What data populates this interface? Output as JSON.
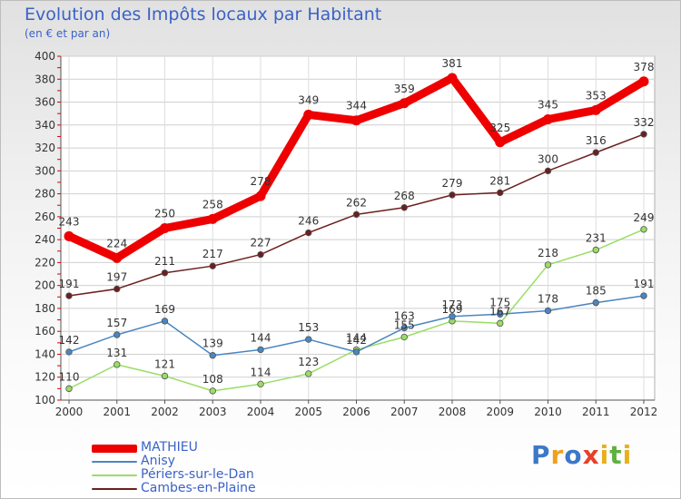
{
  "title": "Evolution des Impôts locaux par Habitant",
  "subtitle": "(en € et par an)",
  "brand": {
    "letters": [
      "P",
      "r",
      "o",
      "x",
      "i",
      "t",
      "i"
    ],
    "colors": [
      "#3d78c8",
      "#f0a020",
      "#3d78c8",
      "#e8402a",
      "#e8b020",
      "#60b040",
      "#e8b020"
    ]
  },
  "chart_data": {
    "type": "line",
    "title": "Evolution des Impôts locaux par Habitant",
    "subtitle": "(en € et par an)",
    "xlabel": "",
    "ylabel": "",
    "x": [
      "2000",
      "2001",
      "2002",
      "2003",
      "2004",
      "2005",
      "2006",
      "2007",
      "2008",
      "2009",
      "2010",
      "2011",
      "2012"
    ],
    "ylim": [
      100,
      400
    ],
    "yticks": [
      100,
      120,
      140,
      160,
      180,
      200,
      220,
      240,
      260,
      280,
      300,
      320,
      340,
      360,
      380,
      400
    ],
    "grid": true,
    "legend_position": "bottom-left",
    "series": [
      {
        "name": "MATHIEU",
        "color": "#ee0000",
        "values": [
          243,
          224,
          250,
          258,
          278,
          349,
          344,
          359,
          381,
          325,
          345,
          353,
          378
        ],
        "labels": [
          "243",
          "224",
          "250",
          "258",
          "278",
          "349",
          "344",
          "359",
          "381",
          "325",
          "345",
          "353",
          "378"
        ]
      },
      {
        "name": "Anisy",
        "color": "#4a86c0",
        "values": [
          142,
          157,
          169,
          139,
          144,
          153,
          142,
          163,
          173,
          175,
          178,
          185,
          191
        ],
        "labels": [
          "142",
          "157",
          "169",
          "139",
          "144",
          "153",
          "142",
          "163",
          "173",
          "175",
          "178",
          "185",
          "191"
        ]
      },
      {
        "name": "Périers-sur-le-Dan",
        "color": "#99dd66",
        "values": [
          110,
          131,
          121,
          108,
          114,
          123,
          144,
          155,
          169,
          167,
          218,
          231,
          249
        ],
        "labels": [
          "110",
          "131",
          "121",
          "108",
          "114",
          "123",
          "144",
          "155",
          "169",
          "167",
          "218",
          "231",
          "249"
        ]
      },
      {
        "name": "Cambes-en-Plaine",
        "color": "#6b1f1f",
        "values": [
          191,
          197,
          211,
          217,
          227,
          246,
          262,
          268,
          279,
          281,
          300,
          316,
          332
        ],
        "labels": [
          "191",
          "197",
          "211",
          "217",
          "227",
          "246",
          "262",
          "268",
          "279",
          "281",
          "300",
          "316",
          "332"
        ]
      }
    ]
  },
  "legend": [
    {
      "label": "MATHIEU",
      "color": "#ee0000"
    },
    {
      "label": "Anisy",
      "color": "#4a86c0"
    },
    {
      "label": "Périers-sur-le-Dan",
      "color": "#99dd66"
    },
    {
      "label": "Cambes-en-Plaine",
      "color": "#6b1f1f"
    }
  ]
}
